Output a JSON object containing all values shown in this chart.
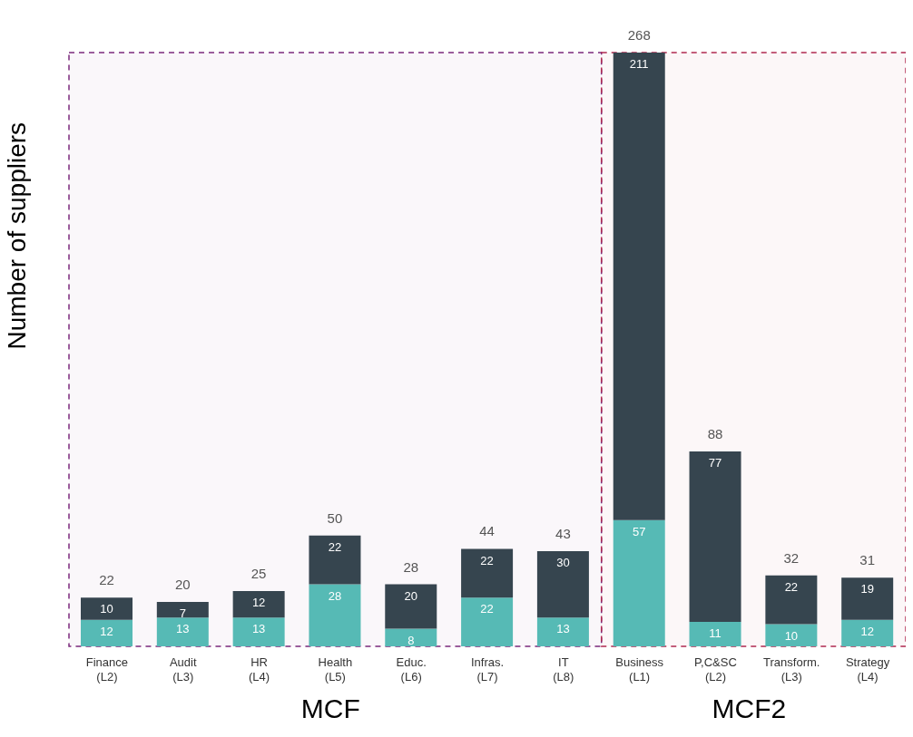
{
  "chart_data": {
    "type": "bar",
    "stacked": true,
    "ylabel": "Number of suppliers",
    "categories": [
      "Finance (L2)",
      "Audit (L3)",
      "HR (L4)",
      "Health (L5)",
      "Educ. (L6)",
      "Infras. (L7)",
      "IT (L8)",
      "Business (L1)",
      "P,C&SC (L2)",
      "Transform. (L3)",
      "Strategy (L4)"
    ],
    "series": [
      {
        "color": "#56bab5",
        "values": [
          12,
          13,
          13,
          28,
          8,
          22,
          13,
          57,
          11,
          10,
          12
        ]
      },
      {
        "color": "#36454f",
        "values": [
          10,
          7,
          12,
          22,
          20,
          22,
          30,
          211,
          77,
          22,
          19
        ]
      }
    ],
    "totals": [
      "22",
      "20",
      "25",
      "50",
      "28",
      "44",
      "43",
      "268",
      "88",
      "32",
      "31"
    ],
    "data_labels": true,
    "legend": false,
    "grid": false,
    "bands": [
      {
        "axis": "x",
        "from": "Finance (L2)",
        "to": "IT (L8)",
        "label": "MCF",
        "color": "#7b2a7c"
      },
      {
        "axis": "x",
        "from": "Business (L1)",
        "to": "Strategy (L4)",
        "label": "MCF2",
        "color": "#b02a50"
      }
    ]
  }
}
